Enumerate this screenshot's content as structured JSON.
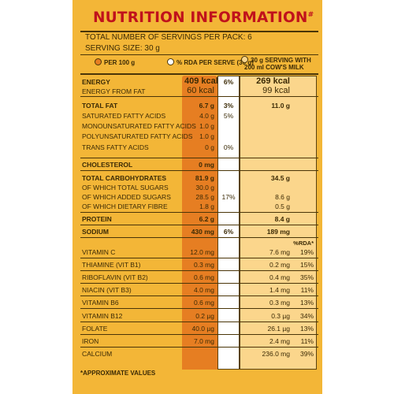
{
  "title": "NUTRITION INFORMATION",
  "title_mark": "#",
  "servings_per_pack": "TOTAL NUMBER OF SERVINGS PER PACK: 6",
  "serving_size": "SERVING SIZE: 30 g",
  "headers": {
    "per100": "PER 100 g",
    "rda": "% RDA PER SERVE (30 g)",
    "serving_line1": "30 g SERVING WITH",
    "serving_line2": "200 ml COW'S MILK",
    "rda_short": "%RDA*"
  },
  "rows": [
    {
      "label": "ENERGY",
      "v1": "409 kcal",
      "v2": "6%",
      "v3": "269 kcal",
      "v4": "",
      "bold": true
    },
    {
      "label": "ENERGY FROM FAT",
      "v1": "60 kcal",
      "v2": "",
      "v3": "99 kcal",
      "v4": "",
      "bold": false
    },
    {
      "label": "TOTAL FAT",
      "v1": "6.7 g",
      "v2": "3%",
      "v3": "11.0 g",
      "v4": "",
      "bold": true
    },
    {
      "label": "SATURATED FATTY ACIDS",
      "v1": "4.0 g",
      "v2": "5%",
      "v3": "",
      "v4": "",
      "bold": false
    },
    {
      "label": "MONOUNSATURATED FATTY ACIDS",
      "v1": "1.0 g",
      "v2": "",
      "v3": "",
      "v4": "",
      "bold": false
    },
    {
      "label": "POLYUNSATURATED FATTY ACIDS",
      "v1": "1.0 g",
      "v2": "",
      "v3": "",
      "v4": "",
      "bold": false
    },
    {
      "label": "TRANS FATTY ACIDS",
      "v1": "0 g",
      "v2": "0%",
      "v3": "",
      "v4": "",
      "bold": false
    },
    {
      "label": "CHOLESTEROL",
      "v1": "0 mg",
      "v2": "",
      "v3": "",
      "v4": "",
      "bold": true
    },
    {
      "label": "TOTAL CARBOHYDRATES",
      "v1": "81.9 g",
      "v2": "",
      "v3": "34.5 g",
      "v4": "",
      "bold": true
    },
    {
      "label": "OF WHICH TOTAL SUGARS",
      "v1": "30.0 g",
      "v2": "",
      "v3": "",
      "v4": "",
      "bold": false
    },
    {
      "label": "OF WHICH ADDED SUGARS",
      "v1": "28.5 g",
      "v2": "17%",
      "v3": "8.6 g",
      "v4": "",
      "bold": false
    },
    {
      "label": "OF WHICH DIETARY FIBRE",
      "v1": "1.8 g",
      "v2": "",
      "v3": "0.5 g",
      "v4": "",
      "bold": false
    },
    {
      "label": "PROTEIN",
      "v1": "6.2 g",
      "v2": "",
      "v3": "8.4 g",
      "v4": "",
      "bold": true
    },
    {
      "label": "SODIUM",
      "v1": "430 mg",
      "v2": "6%",
      "v3": "189 mg",
      "v4": "",
      "bold": true
    },
    {
      "label": "VITAMIN C",
      "v1": "12.0 mg",
      "v2": "",
      "v3": "7.6 mg",
      "v4": "19%",
      "bold": false
    },
    {
      "label": "THIAMINE (VIT B1)",
      "v1": "0.3 mg",
      "v2": "",
      "v3": "0.2 mg",
      "v4": "15%",
      "bold": false
    },
    {
      "label": "RIBOFLAVIN (VIT B2)",
      "v1": "0.6 mg",
      "v2": "",
      "v3": "0.4 mg",
      "v4": "35%",
      "bold": false
    },
    {
      "label": "NIACIN (VIT B3)",
      "v1": "4.0 mg",
      "v2": "",
      "v3": "1.4 mg",
      "v4": "11%",
      "bold": false
    },
    {
      "label": "VITAMIN B6",
      "v1": "0.6 mg",
      "v2": "",
      "v3": "0.3 mg",
      "v4": "13%",
      "bold": false
    },
    {
      "label": "VITAMIN B12",
      "v1": "0.2 µg",
      "v2": "",
      "v3": "0.3 µg",
      "v4": "34%",
      "bold": false
    },
    {
      "label": "FOLATE",
      "v1": "40.0 µg",
      "v2": "",
      "v3": "26.1 µg",
      "v4": "13%",
      "bold": false
    },
    {
      "label": "IRON",
      "v1": "7.0 mg",
      "v2": "",
      "v3": "2.4 mg",
      "v4": "11%",
      "bold": false
    },
    {
      "label": "CALCIUM",
      "v1": "",
      "v2": "",
      "v3": "236.0 mg",
      "v4": "39%",
      "bold": false
    }
  ],
  "footnote": "*APPROXIMATE VALUES",
  "colors": {
    "panel": "#f3b637",
    "title": "#c0121c",
    "column_per100": "#e67e22",
    "column_serving": "#fbd68c"
  }
}
